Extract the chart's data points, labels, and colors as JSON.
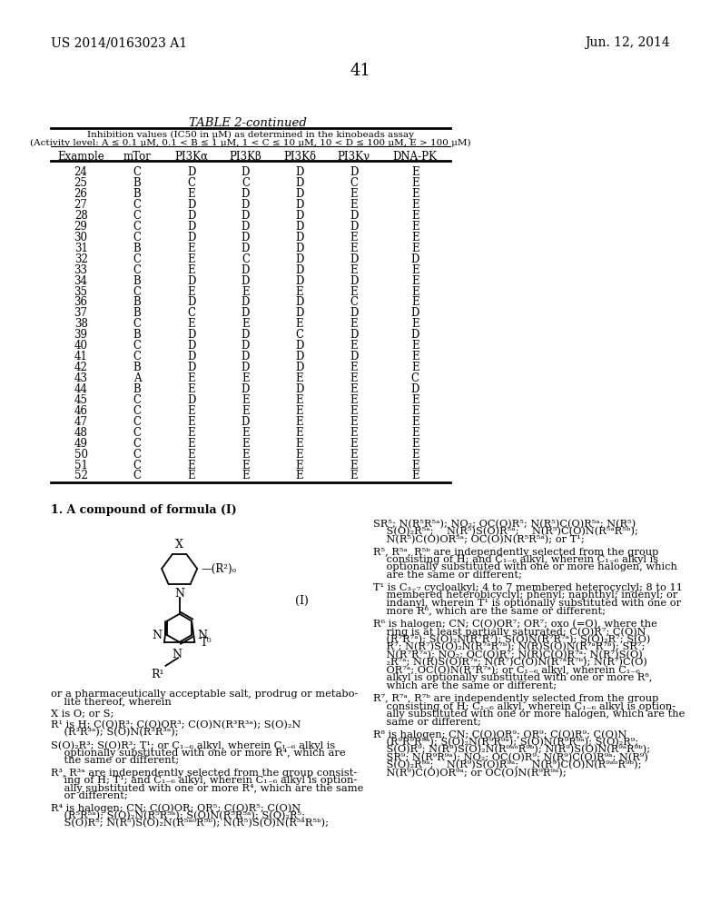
{
  "page_number": "41",
  "patent_number": "US 2014/0163023 A1",
  "patent_date": "Jun. 12, 2014",
  "table_title": "TABLE 2-continued",
  "table_subtitle1": "Inhibition values (IC50 in μM) as determined in the kinobeads assay",
  "table_subtitle2": "(Activity level: A ≤ 0.1 μM, 0.1 < B ≤ 1 μM, 1 < C ≤ 10 μM, 10 < D ≤ 100 μM, E > 100 μM)",
  "columns": [
    "Example",
    "mTor",
    "PI3Kα",
    "PI3Kβ",
    "PI3Kδ",
    "PI3Kγ",
    "DNA-PK"
  ],
  "rows": [
    [
      24,
      "C",
      "D",
      "D",
      "D",
      "D",
      "E"
    ],
    [
      25,
      "B",
      "C",
      "C",
      "D",
      "C",
      "E"
    ],
    [
      26,
      "B",
      "E",
      "D",
      "D",
      "E",
      "E"
    ],
    [
      27,
      "C",
      "D",
      "D",
      "D",
      "E",
      "E"
    ],
    [
      28,
      "C",
      "D",
      "D",
      "D",
      "D",
      "E"
    ],
    [
      29,
      "C",
      "D",
      "D",
      "D",
      "D",
      "E"
    ],
    [
      30,
      "C",
      "D",
      "D",
      "D",
      "E",
      "E"
    ],
    [
      31,
      "B",
      "E",
      "D",
      "D",
      "E",
      "E"
    ],
    [
      32,
      "C",
      "E",
      "C",
      "D",
      "D",
      "D"
    ],
    [
      33,
      "C",
      "E",
      "D",
      "D",
      "E",
      "E"
    ],
    [
      34,
      "B",
      "D",
      "D",
      "D",
      "D",
      "E"
    ],
    [
      35,
      "C",
      "E",
      "E",
      "E",
      "E",
      "E"
    ],
    [
      36,
      "B",
      "D",
      "D",
      "D",
      "C",
      "E"
    ],
    [
      37,
      "B",
      "C",
      "D",
      "D",
      "D",
      "D"
    ],
    [
      38,
      "C",
      "E",
      "E",
      "E",
      "E",
      "E"
    ],
    [
      39,
      "B",
      "D",
      "D",
      "C",
      "D",
      "D"
    ],
    [
      40,
      "C",
      "D",
      "D",
      "D",
      "E",
      "E"
    ],
    [
      41,
      "C",
      "D",
      "D",
      "D",
      "D",
      "E"
    ],
    [
      42,
      "B",
      "D",
      "D",
      "D",
      "E",
      "E"
    ],
    [
      43,
      "A",
      "E",
      "E",
      "E",
      "E",
      "C"
    ],
    [
      44,
      "B",
      "E",
      "D",
      "D",
      "E",
      "D"
    ],
    [
      45,
      "C",
      "D",
      "E",
      "E",
      "E",
      "E"
    ],
    [
      46,
      "C",
      "E",
      "E",
      "E",
      "E",
      "E"
    ],
    [
      47,
      "C",
      "E",
      "D",
      "E",
      "E",
      "E"
    ],
    [
      48,
      "C",
      "E",
      "E",
      "E",
      "E",
      "E"
    ],
    [
      49,
      "C",
      "E",
      "E",
      "E",
      "E",
      "E"
    ],
    [
      50,
      "C",
      "E",
      "E",
      "E",
      "E",
      "E"
    ],
    [
      51,
      "C",
      "E",
      "E",
      "E",
      "E",
      "E"
    ],
    [
      52,
      "C",
      "E",
      "E",
      "E",
      "E",
      "E"
    ]
  ],
  "claim_title": "1. A compound of formula (I)",
  "formula_label": "(I)",
  "bg_color": "#ffffff",
  "text_color": "#000000",
  "line_color": "#000000"
}
